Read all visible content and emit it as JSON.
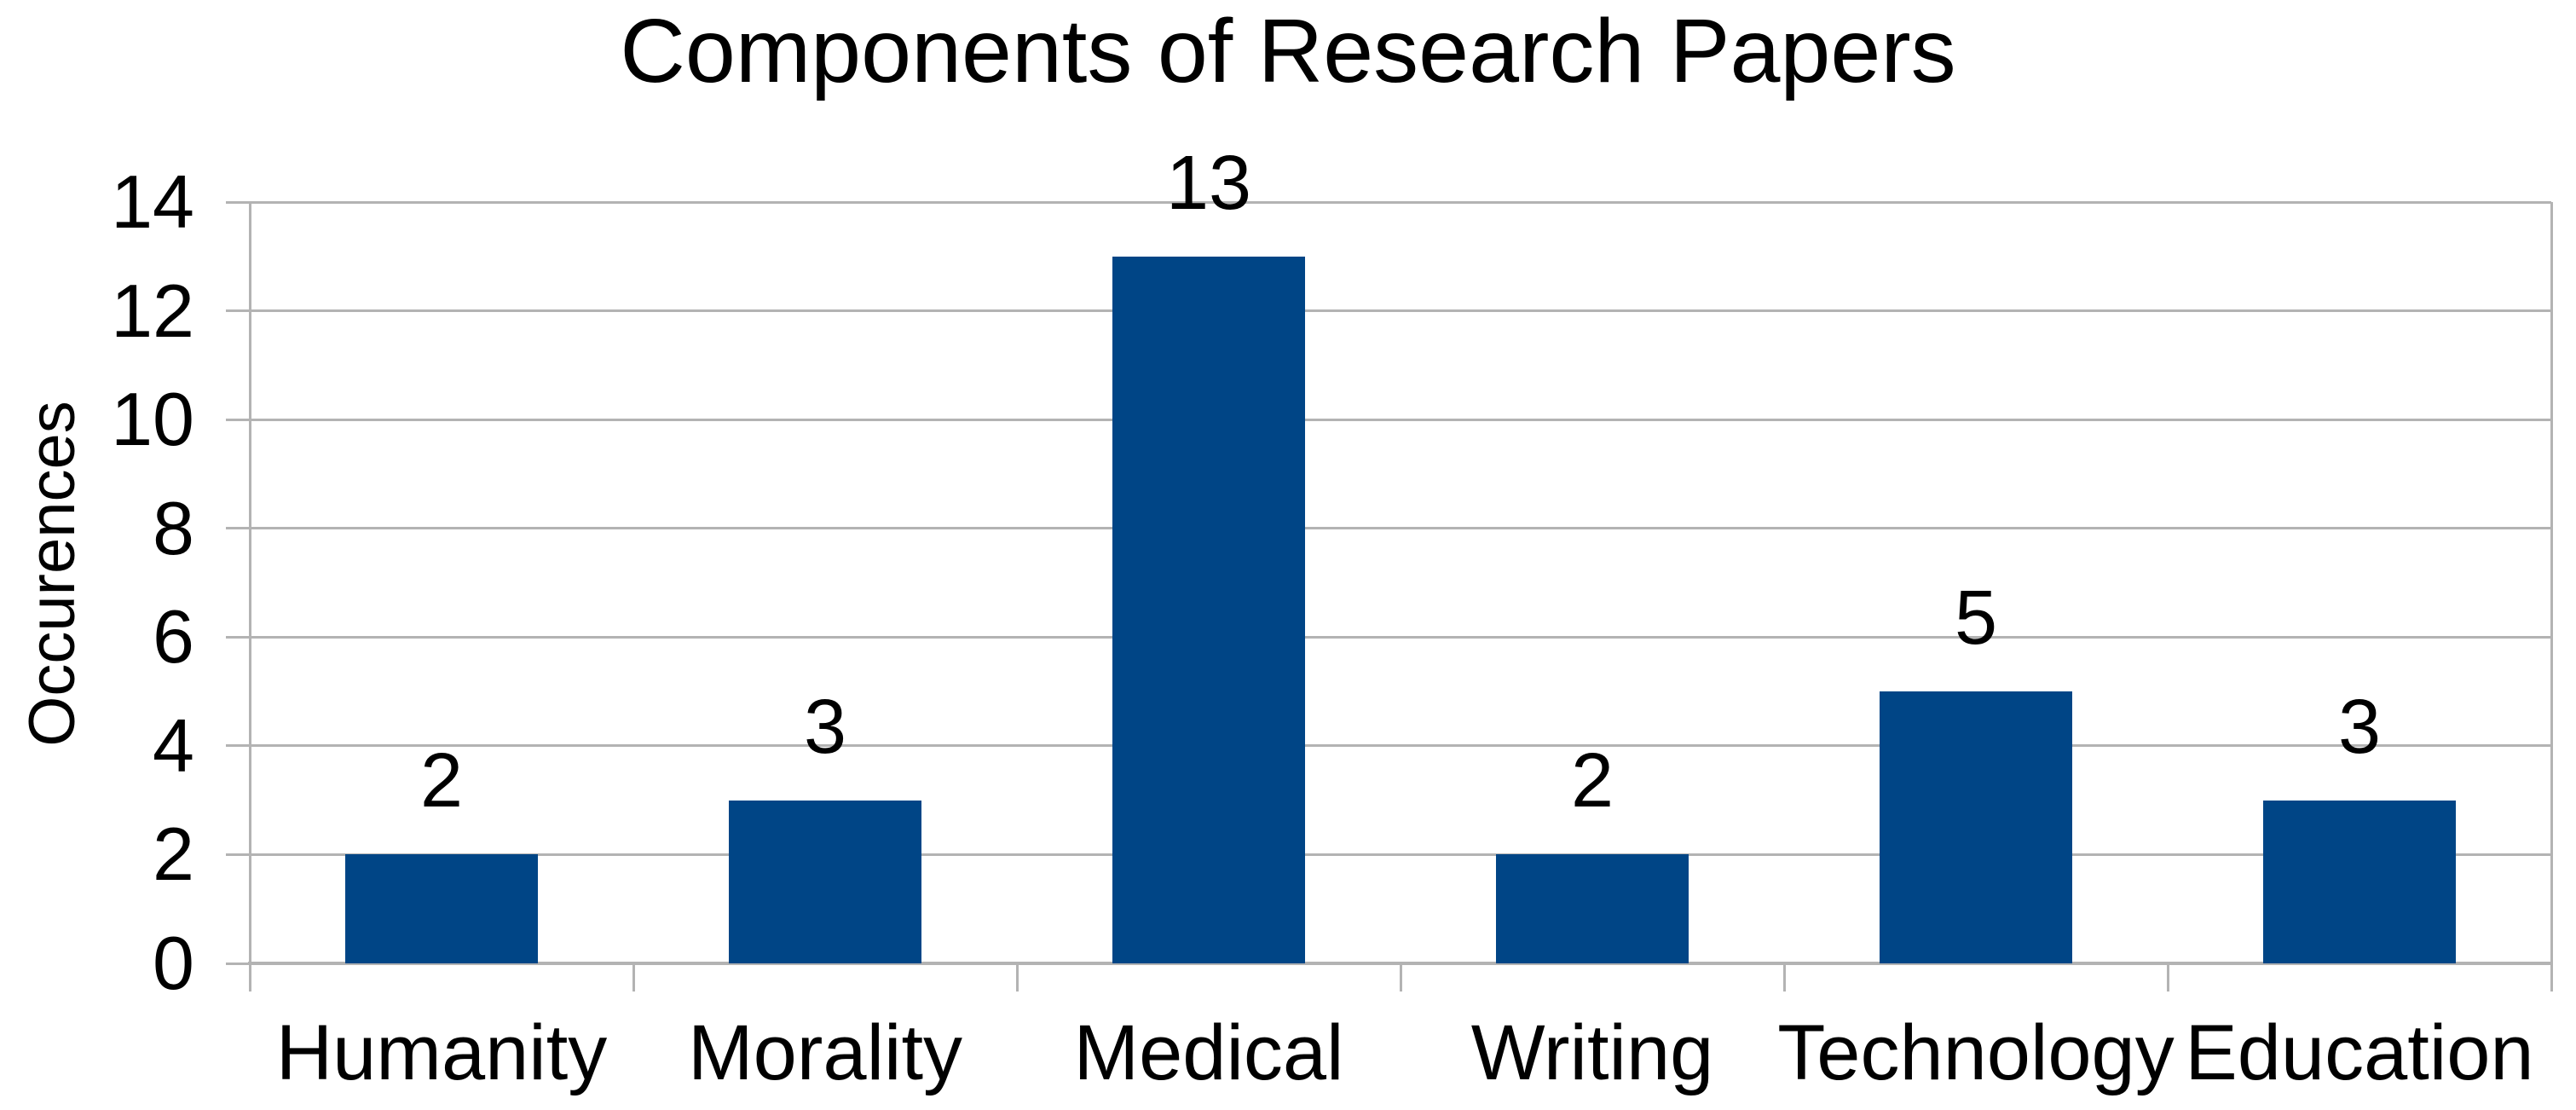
{
  "chart_data": {
    "type": "bar",
    "title": "Components of Research Papers",
    "categories": [
      "Humanity",
      "Morality",
      "Medical",
      "Writing",
      "Technology",
      "Education"
    ],
    "values": [
      2,
      3,
      13,
      2,
      5,
      3
    ],
    "data_labels": [
      "2",
      "3",
      "13",
      "2",
      "5",
      "3"
    ],
    "xlabel": "",
    "ylabel": "Occurences",
    "ylim": [
      0,
      14
    ],
    "yticks": [
      0,
      2,
      4,
      6,
      8,
      10,
      12,
      14
    ],
    "grid": "horizontal",
    "legend": "none",
    "bar_color": "#004586",
    "gridline_color": "#b3b3b3",
    "axis_color": "#b3b3b3",
    "text_color": "#000000",
    "background": "#ffffff"
  }
}
